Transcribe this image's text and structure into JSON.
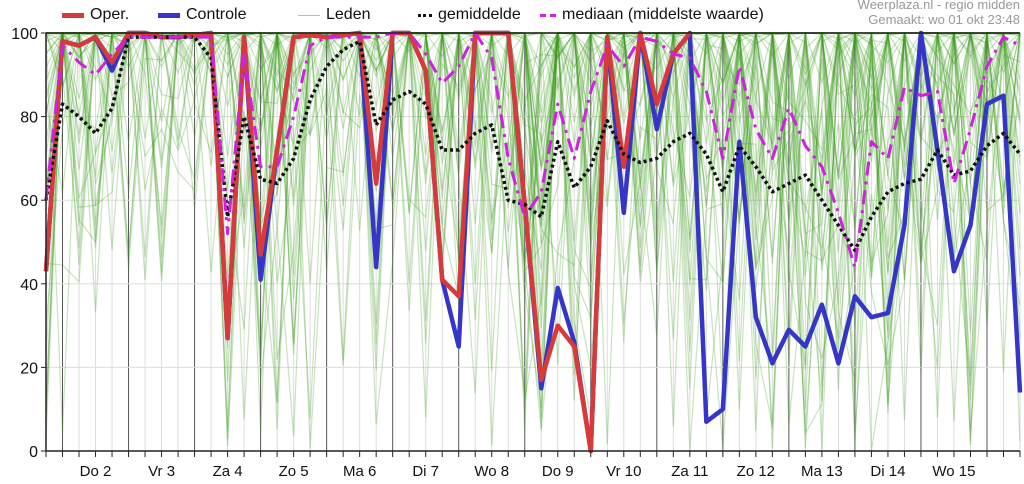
{
  "header": {
    "source": "Weerplaza.nl - regio midden",
    "created": "Gemaakt: wo 01 okt 23:48"
  },
  "chart_data": {
    "type": "line",
    "title": "",
    "xlabel": "",
    "ylabel": "",
    "ylim": [
      0,
      100
    ],
    "yticks": [
      0,
      20,
      40,
      60,
      80,
      100
    ],
    "step_hours": 6,
    "day_labels": [
      "Do 2",
      "Vr 3",
      "Za 4",
      "Zo 5",
      "Ma 6",
      "Di 7",
      "Wo 8",
      "Do 9",
      "Vr 10",
      "Za 11",
      "Zo 12",
      "Ma 13",
      "Di 14",
      "Wo 15"
    ],
    "grid": true,
    "legend_position": "top",
    "members_count": 50,
    "series": [
      {
        "name": "Oper.",
        "color": "#d63a3a",
        "values": [
          43,
          98,
          97,
          99,
          93,
          100,
          100,
          99,
          99,
          99.5,
          100,
          27,
          99,
          47,
          72,
          99,
          99.5,
          99,
          99.5,
          100,
          64,
          100,
          100,
          91,
          41,
          37,
          100,
          100,
          100,
          59,
          17,
          30,
          25,
          0,
          99,
          68,
          100,
          83,
          95,
          100
        ]
      },
      {
        "name": "Controle",
        "color": "#3535c8",
        "values": [
          43,
          98,
          97,
          99,
          91,
          100,
          100,
          99,
          99,
          99.5,
          100,
          27,
          99,
          41,
          72,
          99,
          99.5,
          99,
          99.5,
          100,
          44,
          100,
          100,
          91,
          41,
          25,
          100,
          100,
          100,
          59,
          15,
          39,
          26,
          0,
          99,
          57,
          100,
          77,
          95,
          100,
          7,
          10,
          74,
          32,
          21,
          29,
          25,
          35,
          21,
          37,
          32,
          33,
          54,
          100,
          72,
          43,
          54,
          83,
          85,
          14
        ]
      },
      {
        "name": "Leden",
        "color": "#3a9a1a"
      },
      {
        "name": "gemiddelde",
        "color": "#111111",
        "values": [
          60,
          83,
          80,
          76,
          82,
          99,
          99,
          99,
          99,
          99,
          94,
          56,
          80,
          65,
          64,
          70,
          84,
          92,
          96,
          98,
          78,
          84,
          86,
          83,
          72,
          72,
          76,
          78,
          60,
          59,
          56,
          74,
          63,
          68,
          79,
          71,
          69,
          70,
          74,
          76,
          71,
          62,
          73,
          68,
          62,
          64,
          66,
          60,
          54,
          48,
          56,
          62,
          64,
          65,
          72,
          66,
          67,
          73,
          76,
          71
        ]
      },
      {
        "name": "mediaan (middelste waarde)",
        "color": "#d020e0",
        "values": [
          60,
          97,
          93,
          90,
          95,
          99,
          99,
          99,
          99,
          99,
          99,
          52,
          95,
          68,
          68,
          80,
          97,
          99,
          99,
          99,
          99,
          100,
          100,
          95,
          88,
          92,
          100,
          94,
          70,
          56,
          62,
          83,
          70,
          86,
          97,
          92,
          99,
          98,
          95,
          94,
          86,
          70,
          92,
          77,
          70,
          82,
          73,
          68,
          57,
          44,
          74,
          70,
          87,
          85,
          86,
          64,
          77,
          92,
          99,
          97
        ]
      }
    ]
  }
}
